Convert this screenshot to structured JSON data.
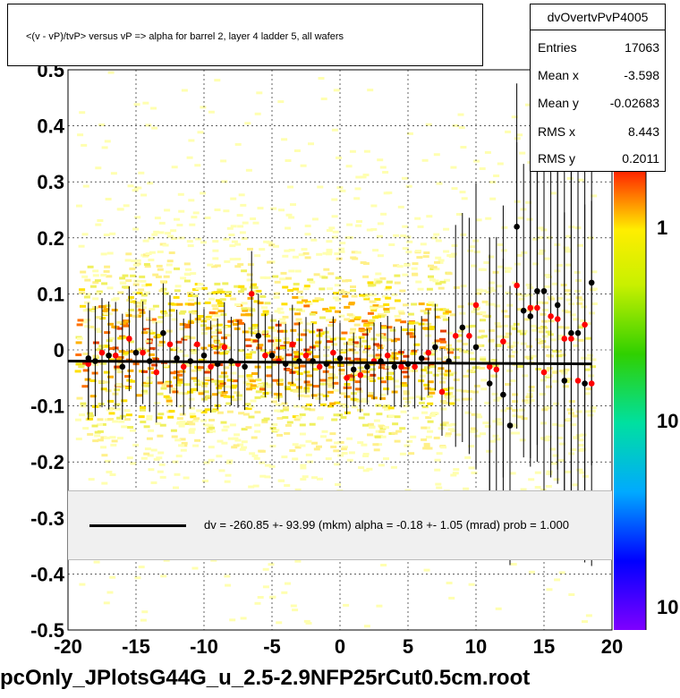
{
  "chart_data": {
    "type": "scatter",
    "title": "<(v - vP)/tvP> versus   vP => alpha for barrel 2, layer 4 ladder 5, all wafers",
    "xlim": [
      -20,
      20
    ],
    "ylim": [
      -0.5,
      0.5
    ],
    "x_ticks": [
      "-20",
      "-15",
      "-10",
      "-5",
      "0",
      "5",
      "10",
      "15",
      "20"
    ],
    "y_ticks": [
      "-0.5",
      "-0.4",
      "-0.3",
      "-0.2",
      "-0.1",
      "0",
      "0.1",
      "0.2",
      "0.3",
      "0.4",
      "0.5"
    ],
    "z_ticks": [
      "1",
      "10",
      "10"
    ],
    "grid": true,
    "series": [
      {
        "color": "#000000",
        "points": [
          [
            -18.5,
            -0.015
          ],
          [
            -18,
            -0.02
          ],
          [
            -17,
            -0.01
          ],
          [
            -16,
            -0.03
          ],
          [
            -15,
            -0.005
          ],
          [
            -14,
            -0.02
          ],
          [
            -13,
            0.03
          ],
          [
            -12,
            -0.015
          ],
          [
            -11,
            -0.02
          ],
          [
            -10,
            -0.01
          ],
          [
            -9,
            -0.025
          ],
          [
            -8,
            -0.02
          ],
          [
            -7,
            -0.03
          ],
          [
            -6,
            0.025
          ],
          [
            -5,
            -0.01
          ],
          [
            -4,
            -0.025
          ],
          [
            -3,
            -0.02
          ],
          [
            -2,
            -0.02
          ],
          [
            -1,
            -0.025
          ],
          [
            0,
            -0.015
          ],
          [
            1,
            -0.035
          ],
          [
            2,
            -0.03
          ],
          [
            3,
            -0.02
          ],
          [
            4,
            -0.03
          ],
          [
            5,
            -0.025
          ],
          [
            6,
            -0.015
          ],
          [
            7,
            0.005
          ],
          [
            8,
            -0.02
          ],
          [
            9,
            0.04
          ],
          [
            10,
            0.005
          ],
          [
            11,
            -0.06
          ],
          [
            12,
            -0.08
          ],
          [
            12.5,
            -0.135
          ],
          [
            13,
            0.22
          ],
          [
            13.5,
            0.07
          ],
          [
            14,
            0.06
          ],
          [
            14.5,
            0.105
          ],
          [
            15,
            0.105
          ],
          [
            16,
            0.08
          ],
          [
            16.5,
            -0.055
          ],
          [
            17,
            0.03
          ],
          [
            17.5,
            0.03
          ],
          [
            18,
            -0.06
          ],
          [
            18.5,
            0.12
          ]
        ]
      },
      {
        "color": "#ff0000",
        "points": [
          [
            -18.5,
            -0.025
          ],
          [
            -17.5,
            -0.005
          ],
          [
            -16.5,
            -0.01
          ],
          [
            -15.5,
            0.02
          ],
          [
            -14.5,
            -0.005
          ],
          [
            -13.5,
            -0.04
          ],
          [
            -12.5,
            0.01
          ],
          [
            -11.5,
            -0.03
          ],
          [
            -10.5,
            0.01
          ],
          [
            -9.5,
            -0.03
          ],
          [
            -8.5,
            0.005
          ],
          [
            -7.5,
            -0.025
          ],
          [
            -6.5,
            0.1
          ],
          [
            -5.5,
            -0.01
          ],
          [
            -4.5,
            -0.02
          ],
          [
            -3.5,
            0.01
          ],
          [
            -2.5,
            -0.01
          ],
          [
            -1.5,
            -0.03
          ],
          [
            -0.5,
            -0.005
          ],
          [
            0.5,
            -0.05
          ],
          [
            1.5,
            -0.045
          ],
          [
            2.5,
            -0.02
          ],
          [
            3.5,
            -0.01
          ],
          [
            4.5,
            -0.03
          ],
          [
            5.5,
            -0.03
          ],
          [
            6.5,
            -0.005
          ],
          [
            7.5,
            -0.075
          ],
          [
            8.5,
            0.025
          ],
          [
            9.5,
            0.025
          ],
          [
            10,
            0.08
          ],
          [
            11,
            -0.03
          ],
          [
            11.5,
            -0.035
          ],
          [
            12,
            0.015
          ],
          [
            13,
            0.115
          ],
          [
            14,
            0.075
          ],
          [
            14.5,
            0.075
          ],
          [
            15,
            -0.04
          ],
          [
            15.5,
            0.06
          ],
          [
            16,
            0.055
          ],
          [
            16.5,
            0.02
          ],
          [
            17,
            0.02
          ],
          [
            17.5,
            -0.055
          ],
          [
            18,
            0.045
          ],
          [
            18.5,
            -0.06
          ]
        ]
      }
    ],
    "fit_line": {
      "x": [
        -20,
        18.5
      ],
      "y": [
        -0.02,
        -0.025
      ]
    }
  },
  "stats": {
    "name": "dvOvertvPvP4005",
    "rows": [
      {
        "label": "Entries",
        "value": "17063"
      },
      {
        "label": "Mean x",
        "value": "-3.598"
      },
      {
        "label": "Mean y",
        "value": "-0.02683"
      },
      {
        "label": "RMS x",
        "value": "8.443"
      },
      {
        "label": "RMS y",
        "value": "0.2011"
      }
    ]
  },
  "legend": {
    "text": "dv = -260.85 +- 93.99 (mkm) alpha =   -0.18 +-  1.05 (mrad) prob = 1.000"
  },
  "footer": "pcOnly_JPlotsG44G_u_2.5-2.9NFP25rCut0.5cm.root"
}
